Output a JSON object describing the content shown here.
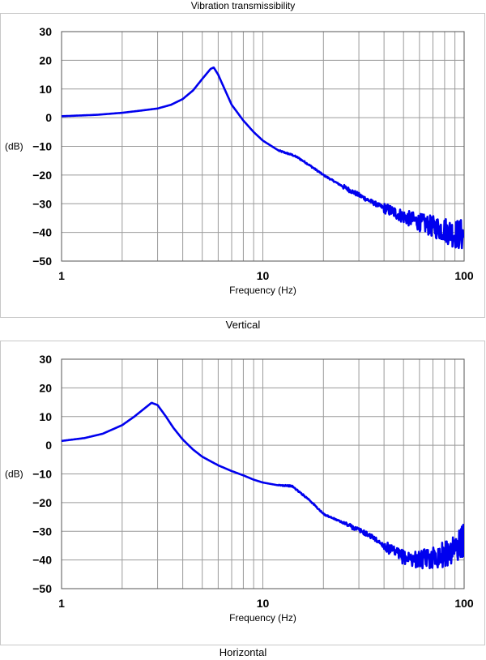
{
  "page_title": "Vibration transmissibility",
  "chart_data": [
    {
      "type": "line",
      "caption": "Vertical",
      "xlabel": "Frequency (Hz)",
      "ylabel": "(dB)",
      "x_scale": "log",
      "xlim": [
        1,
        100
      ],
      "ylim": [
        -50,
        30
      ],
      "x_ticks": [
        "1",
        "10",
        "100"
      ],
      "y_ticks": [
        "30",
        "20",
        "10",
        "0",
        "−10",
        "−20",
        "−30",
        "−40",
        "−50"
      ],
      "grid": true,
      "line_color": "#0000ee",
      "series": [
        {
          "x": [
            1,
            1.5,
            2,
            2.5,
            3,
            3.5,
            4,
            4.5,
            5,
            5.5,
            5.7,
            6,
            6.5,
            7,
            8,
            9,
            10,
            12,
            14,
            15,
            17,
            20,
            25,
            30,
            35,
            40,
            45,
            50,
            60,
            70,
            80,
            90,
            100
          ],
          "y": [
            0.5,
            1,
            1.7,
            2.5,
            3.2,
            4.5,
            6.5,
            9.5,
            13.5,
            17,
            17.5,
            15,
            9.5,
            4.5,
            -1,
            -5,
            -8,
            -11.5,
            -13,
            -14,
            -16.5,
            -20,
            -24,
            -27,
            -29.5,
            -31.5,
            -33,
            -34.5,
            -36.5,
            -38,
            -39,
            -40.5,
            -41
          ]
        }
      ]
    },
    {
      "type": "line",
      "caption": "Horizontal",
      "xlabel": "Frequency (Hz)",
      "ylabel": "(dB)",
      "x_scale": "log",
      "xlim": [
        1,
        100
      ],
      "ylim": [
        -50,
        30
      ],
      "x_ticks": [
        "1",
        "10",
        "100"
      ],
      "y_ticks": [
        "30",
        "20",
        "10",
        "0",
        "−10",
        "−20",
        "−30",
        "−40",
        "−50"
      ],
      "grid": true,
      "line_color": "#0000ee",
      "series": [
        {
          "x": [
            1,
            1.3,
            1.6,
            2,
            2.3,
            2.6,
            2.8,
            3,
            3.3,
            3.6,
            4,
            4.5,
            5,
            6,
            7,
            8,
            9,
            10,
            12,
            13,
            14,
            15,
            17,
            20,
            25,
            30,
            35,
            40,
            45,
            50,
            60,
            70,
            80,
            90,
            100
          ],
          "y": [
            1.5,
            2.5,
            4,
            7,
            10,
            13,
            14.8,
            14,
            10,
            6,
            2,
            -1.5,
            -4,
            -7,
            -9,
            -10.5,
            -12,
            -13,
            -14,
            -14,
            -14.3,
            -16,
            -19,
            -24,
            -27,
            -29.5,
            -32,
            -35,
            -37.5,
            -39,
            -40,
            -39,
            -38,
            -36,
            -33
          ]
        }
      ]
    }
  ]
}
